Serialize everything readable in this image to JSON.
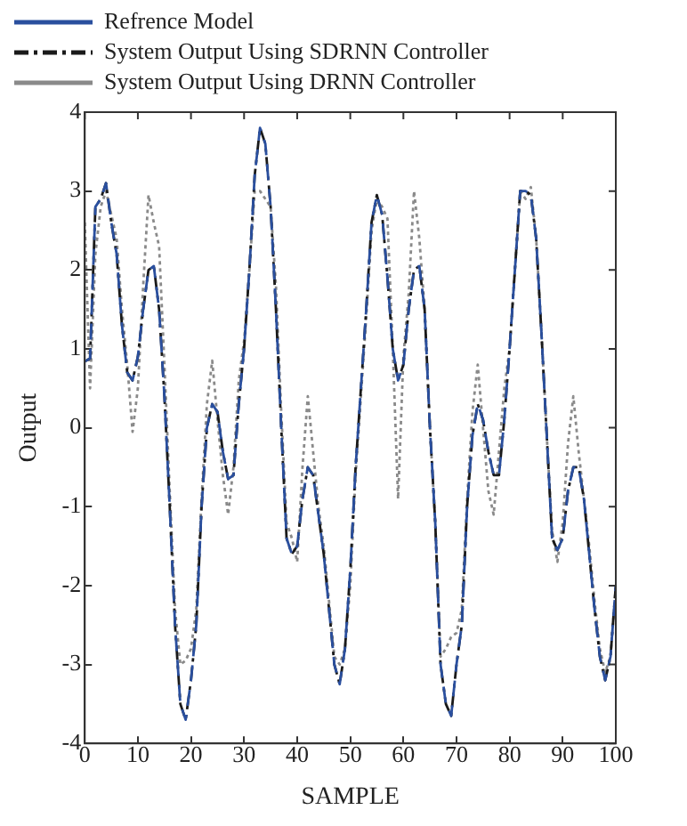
{
  "chart_data": {
    "type": "line",
    "xlabel": "SAMPLE",
    "ylabel": "Output",
    "xlim": [
      0,
      100
    ],
    "xticks": [
      0,
      10,
      20,
      30,
      40,
      50,
      60,
      70,
      80,
      90,
      100
    ],
    "ylim": [
      -4,
      4
    ],
    "yticks": [
      -4,
      -3,
      -2,
      -1,
      0,
      1,
      2,
      3,
      4
    ],
    "grid": false,
    "legend": "top left",
    "marker": "none",
    "x": [
      0,
      1,
      2,
      3,
      4,
      5,
      6,
      7,
      8,
      9,
      10,
      11,
      12,
      13,
      14,
      15,
      16,
      17,
      18,
      19,
      20,
      21,
      22,
      23,
      24,
      25,
      26,
      27,
      28,
      29,
      30,
      31,
      32,
      33,
      34,
      35,
      36,
      37,
      38,
      39,
      40,
      41,
      42,
      43,
      44,
      45,
      46,
      47,
      48,
      49,
      50,
      51,
      52,
      53,
      54,
      55,
      56,
      57,
      58,
      59,
      60,
      61,
      62,
      63,
      64,
      65,
      66,
      67,
      68,
      69,
      70,
      71,
      72,
      73,
      74,
      75,
      76,
      77,
      78,
      79,
      80,
      81,
      82,
      83,
      84,
      85,
      86,
      87,
      88,
      89,
      90,
      91,
      92,
      93,
      94,
      95,
      96,
      97,
      98,
      99,
      100
    ],
    "series": [
      {
        "name": "Refrence Model",
        "color": "#2a4f9e",
        "line_style": "dashed",
        "values": [
          0.84,
          0.88,
          2.8,
          2.9,
          3.1,
          2.6,
          2.2,
          1.3,
          0.7,
          0.6,
          0.9,
          1.5,
          2.0,
          2.05,
          1.5,
          0.4,
          -1.0,
          -2.5,
          -3.5,
          -3.7,
          -3.2,
          -2.5,
          -1.0,
          0.0,
          0.3,
          0.2,
          -0.3,
          -0.65,
          -0.6,
          0.3,
          1.0,
          2.0,
          3.2,
          3.8,
          3.6,
          2.8,
          1.5,
          0.0,
          -1.4,
          -1.6,
          -1.5,
          -0.9,
          -0.5,
          -0.6,
          -1.1,
          -1.6,
          -2.3,
          -3.0,
          -3.25,
          -2.8,
          -1.8,
          -0.5,
          0.5,
          1.5,
          2.6,
          2.95,
          2.7,
          1.9,
          1.0,
          0.6,
          0.8,
          1.5,
          2.0,
          2.05,
          1.5,
          0.0,
          -1.2,
          -3.0,
          -3.5,
          -3.65,
          -3.0,
          -2.5,
          -1.0,
          -0.1,
          0.3,
          0.1,
          -0.3,
          -0.6,
          -0.6,
          0.1,
          1.0,
          2.0,
          3.0,
          3.0,
          2.95,
          2.4,
          1.2,
          -0.1,
          -1.4,
          -1.55,
          -1.4,
          -0.8,
          -0.5,
          -0.5,
          -0.9,
          -1.6,
          -2.3,
          -2.9,
          -3.2,
          -2.9,
          -2.0
        ]
      },
      {
        "name": "System Output Using SDRNN Controller",
        "color": "#1a1a1a",
        "line_style": "dashdot",
        "values": [
          0.84,
          0.88,
          2.8,
          2.9,
          3.1,
          2.6,
          2.2,
          1.3,
          0.7,
          0.6,
          0.9,
          1.5,
          2.0,
          2.05,
          1.5,
          0.4,
          -1.0,
          -2.5,
          -3.5,
          -3.7,
          -3.2,
          -2.5,
          -1.0,
          0.0,
          0.3,
          0.2,
          -0.3,
          -0.65,
          -0.6,
          0.3,
          1.0,
          2.0,
          3.2,
          3.8,
          3.6,
          2.8,
          1.5,
          0.0,
          -1.4,
          -1.6,
          -1.5,
          -0.9,
          -0.5,
          -0.6,
          -1.1,
          -1.6,
          -2.3,
          -3.0,
          -3.25,
          -2.8,
          -1.8,
          -0.5,
          0.5,
          1.5,
          2.6,
          2.95,
          2.7,
          1.9,
          1.0,
          0.6,
          0.8,
          1.5,
          2.0,
          2.05,
          1.5,
          0.0,
          -1.2,
          -3.0,
          -3.5,
          -3.65,
          -3.0,
          -2.5,
          -1.0,
          -0.1,
          0.3,
          0.1,
          -0.3,
          -0.6,
          -0.6,
          0.1,
          1.0,
          2.0,
          3.0,
          3.0,
          2.95,
          2.4,
          1.2,
          -0.1,
          -1.4,
          -1.55,
          -1.4,
          -0.8,
          -0.5,
          -0.5,
          -0.9,
          -1.6,
          -2.3,
          -2.9,
          -3.2,
          -2.9,
          -2.0
        ]
      },
      {
        "name": "System Output Using DRNN Controller",
        "color": "#8a8a8a",
        "line_style": "dotted",
        "values": [
          2.6,
          0.5,
          2.2,
          2.8,
          3.0,
          2.7,
          2.4,
          1.5,
          0.8,
          -0.05,
          0.5,
          1.8,
          2.95,
          2.6,
          2.3,
          0.8,
          -0.8,
          -2.3,
          -3.0,
          -2.95,
          -2.8,
          -2.3,
          -0.9,
          0.3,
          0.85,
          0.1,
          -0.6,
          -1.1,
          -0.5,
          0.6,
          1.1,
          2.0,
          3.0,
          3.0,
          2.9,
          2.8,
          1.8,
          0.2,
          -1.2,
          -1.4,
          -1.7,
          -0.5,
          0.4,
          -0.3,
          -1.0,
          -1.5,
          -2.2,
          -2.9,
          -3.0,
          -2.8,
          -2.0,
          -0.6,
          0.4,
          1.4,
          2.5,
          2.9,
          2.8,
          2.65,
          1.0,
          -0.9,
          0.9,
          1.7,
          3.0,
          2.4,
          1.5,
          0.0,
          -1.2,
          -2.9,
          -2.8,
          -2.65,
          -2.6,
          -2.3,
          -0.9,
          0.2,
          0.8,
          0.0,
          -0.8,
          -1.1,
          -0.3,
          0.5,
          1.0,
          2.0,
          3.0,
          2.9,
          3.05,
          2.4,
          1.2,
          -0.1,
          -1.3,
          -1.7,
          -1.2,
          -0.2,
          0.4,
          -0.3,
          -0.9,
          -1.5,
          -2.2,
          -2.8,
          -3.1,
          -2.9,
          -2.0
        ]
      }
    ]
  }
}
